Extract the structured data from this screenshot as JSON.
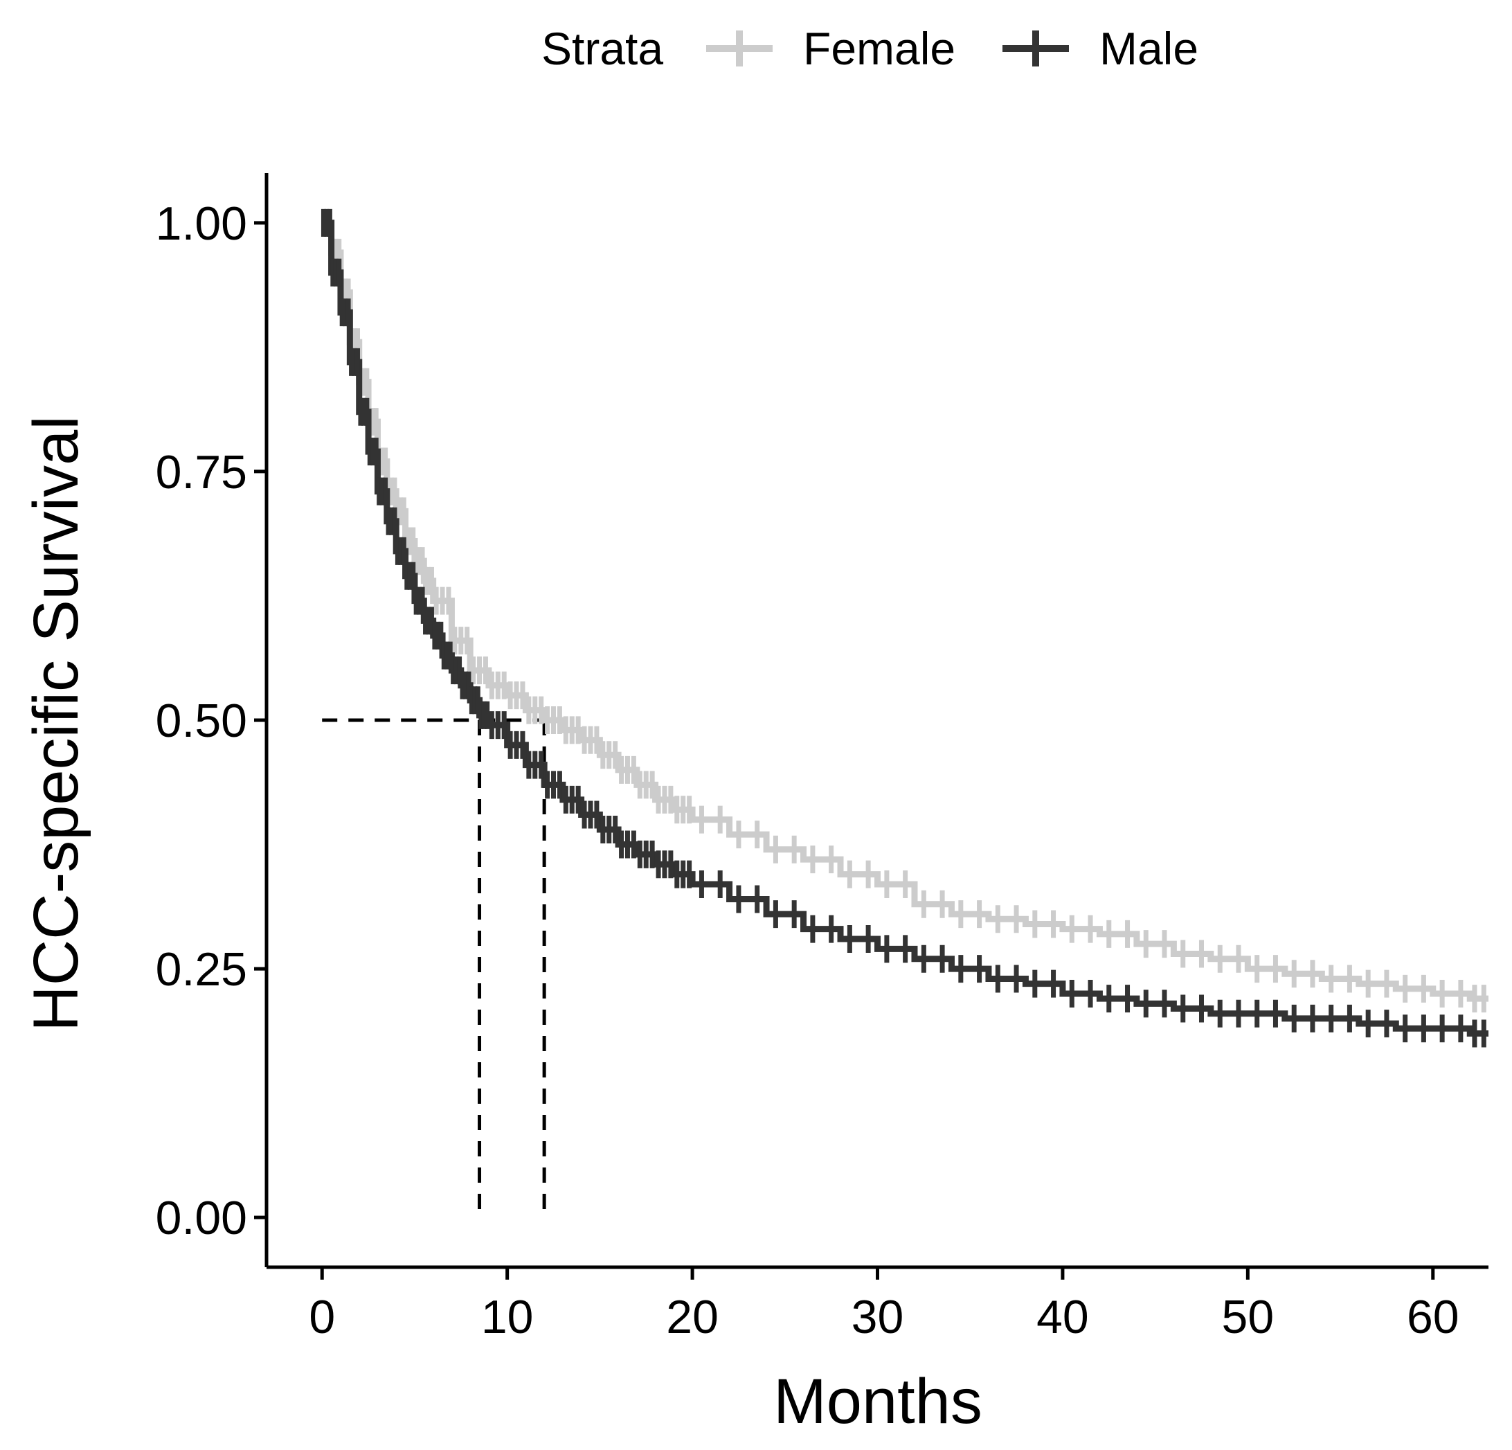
{
  "chart_data": {
    "type": "line",
    "step": true,
    "xlabel": "Months",
    "ylabel": "HCC-specific Survival",
    "xlim": [
      -3,
      63
    ],
    "ylim": [
      -0.05,
      1.05
    ],
    "x_ticks": [
      0,
      10,
      20,
      30,
      40,
      50,
      60
    ],
    "x_tick_labels": [
      "0",
      "10",
      "20",
      "30",
      "40",
      "50",
      "60"
    ],
    "y_ticks": [
      0,
      0.25,
      0.5,
      0.75,
      1.0
    ],
    "y_tick_labels": [
      "0.00",
      "0.25",
      "0.50",
      "0.75",
      "1.00"
    ],
    "grid": false,
    "legend": {
      "position": "top",
      "title": "Strata",
      "entries": [
        "Female",
        "Male"
      ]
    },
    "series": [
      {
        "name": "Female",
        "color": "#cccccc",
        "x": [
          0,
          0.5,
          1,
          1.5,
          2,
          2.5,
          3,
          3.5,
          4,
          4.5,
          5,
          5.5,
          6,
          7,
          8,
          9,
          10,
          11,
          12,
          13,
          14,
          15,
          16,
          17,
          18,
          19,
          20,
          22,
          24,
          26,
          28,
          30,
          32,
          34,
          36,
          38,
          40,
          42,
          44,
          46,
          48,
          50,
          52,
          54,
          56,
          58,
          60,
          62,
          63
        ],
        "y": [
          1.0,
          0.97,
          0.93,
          0.88,
          0.84,
          0.8,
          0.76,
          0.73,
          0.71,
          0.68,
          0.66,
          0.64,
          0.62,
          0.58,
          0.55,
          0.535,
          0.525,
          0.51,
          0.5,
          0.49,
          0.48,
          0.465,
          0.45,
          0.435,
          0.42,
          0.41,
          0.4,
          0.385,
          0.37,
          0.36,
          0.345,
          0.335,
          0.315,
          0.305,
          0.3,
          0.295,
          0.29,
          0.285,
          0.275,
          0.265,
          0.26,
          0.25,
          0.245,
          0.24,
          0.235,
          0.23,
          0.225,
          0.22,
          0.22
        ]
      },
      {
        "name": "Male",
        "color": "#333333",
        "x": [
          0,
          0.5,
          1,
          1.5,
          2,
          2.5,
          3,
          3.5,
          4,
          4.5,
          5,
          5.5,
          6,
          6.5,
          7,
          7.5,
          8,
          8.5,
          9,
          10,
          11,
          12,
          13,
          14,
          15,
          16,
          17,
          18,
          19,
          20,
          22,
          24,
          26,
          28,
          30,
          32,
          34,
          36,
          38,
          40,
          42,
          44,
          46,
          48,
          50,
          52,
          54,
          56,
          58,
          60,
          62,
          63
        ],
        "y": [
          1.0,
          0.95,
          0.91,
          0.86,
          0.81,
          0.77,
          0.73,
          0.7,
          0.67,
          0.645,
          0.62,
          0.6,
          0.585,
          0.565,
          0.55,
          0.535,
          0.52,
          0.505,
          0.495,
          0.475,
          0.455,
          0.435,
          0.42,
          0.405,
          0.39,
          0.375,
          0.365,
          0.355,
          0.345,
          0.335,
          0.32,
          0.305,
          0.29,
          0.28,
          0.27,
          0.26,
          0.25,
          0.24,
          0.235,
          0.225,
          0.22,
          0.215,
          0.21,
          0.205,
          0.205,
          0.2,
          0.2,
          0.195,
          0.19,
          0.19,
          0.185,
          0.185
        ]
      }
    ],
    "median_lines": [
      {
        "series": "Male",
        "x": 8.5,
        "y": 0.5
      },
      {
        "series": "Female",
        "x": 12,
        "y": 0.5
      }
    ]
  }
}
